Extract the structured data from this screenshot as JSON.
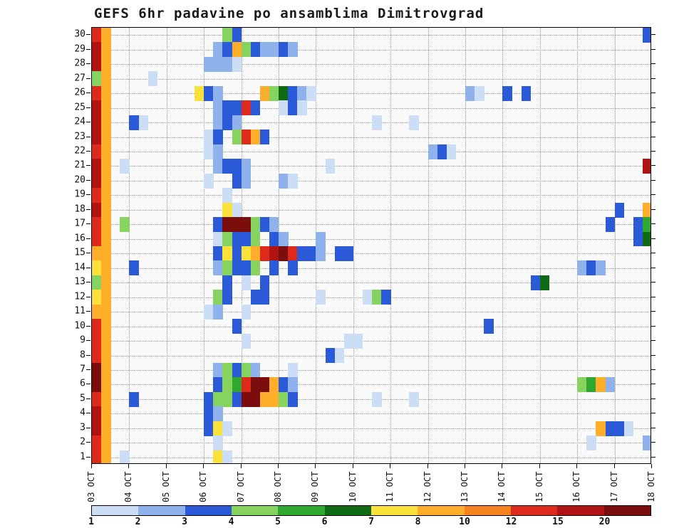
{
  "title": "GEFS 6hr padavine po ansamblima Dimitrovgrad",
  "figure": {
    "background": "#ffffff",
    "plot_background": "#fafafa",
    "grid_color": "#9a9a9a",
    "axis_color": "#000000"
  },
  "chart_data": {
    "type": "heatmap",
    "title": "GEFS 6hr padavine po ansamblima Dimitrovgrad",
    "n_rows": 30,
    "n_cols": 60,
    "grid": "dotted",
    "x_axis": {
      "tick_labels": [
        "03 OCT",
        "04 OCT",
        "05 OCT",
        "06 OCT",
        "07 OCT",
        "08 OCT",
        "09 OCT",
        "10 OCT",
        "11 OCT",
        "12 OCT",
        "13 OCT",
        "14 OCT",
        "15 OCT",
        "16 OCT",
        "17 OCT",
        "18 OCT"
      ],
      "steps_per_tick": 4
    },
    "y_axis": {
      "tick_labels": [
        "30",
        "29",
        "28",
        "27",
        "26",
        "25",
        "24",
        "23",
        "22",
        "21",
        "20",
        "19",
        "18",
        "17",
        "16",
        "15",
        "14",
        "13",
        "12",
        "11",
        "10",
        "9",
        "8",
        "7",
        "6",
        "5",
        "4",
        "3",
        "2",
        "1"
      ]
    },
    "legend": {
      "tick_labels": [
        "1",
        "2",
        "3",
        "4",
        "5",
        "6",
        "7",
        "8",
        "10",
        "12",
        "15",
        "20"
      ],
      "thresholds": [
        1,
        2,
        3,
        4,
        5,
        6,
        7,
        8,
        10,
        12,
        15,
        20
      ],
      "colors": [
        "#ccddf6",
        "#8fb2ec",
        "#2a5ad8",
        "#86d45f",
        "#2fa82f",
        "#0e6b14",
        "#fbe23a",
        "#ffae2c",
        "#f8821f",
        "#de2a1a",
        "#b01311",
        "#7c0d0d"
      ],
      "position": "bottom"
    },
    "cells": [
      [
        30,
        0,
        13
      ],
      [
        30,
        1,
        9
      ],
      [
        30,
        14,
        4.5
      ],
      [
        30,
        15,
        3.5
      ],
      [
        30,
        59,
        3.5
      ],
      [
        29,
        0,
        17
      ],
      [
        29,
        1,
        9
      ],
      [
        29,
        13,
        2.5
      ],
      [
        29,
        14,
        3.5
      ],
      [
        29,
        15,
        9
      ],
      [
        29,
        16,
        4.5
      ],
      [
        29,
        17,
        3.5
      ],
      [
        29,
        18,
        2.5
      ],
      [
        29,
        19,
        2.5
      ],
      [
        29,
        20,
        3.5
      ],
      [
        29,
        21,
        2.5
      ],
      [
        28,
        0,
        17
      ],
      [
        28,
        1,
        9
      ],
      [
        28,
        12,
        2.5
      ],
      [
        28,
        13,
        2.5
      ],
      [
        28,
        14,
        2.5
      ],
      [
        28,
        15,
        1.5
      ],
      [
        27,
        0,
        4.5
      ],
      [
        27,
        1,
        9
      ],
      [
        27,
        6,
        1.5
      ],
      [
        26,
        0,
        13
      ],
      [
        26,
        1,
        9
      ],
      [
        26,
        11,
        7.5
      ],
      [
        26,
        12,
        3.5
      ],
      [
        26,
        13,
        2.5
      ],
      [
        26,
        18,
        9
      ],
      [
        26,
        19,
        4.5
      ],
      [
        26,
        20,
        6.5
      ],
      [
        26,
        21,
        3.5
      ],
      [
        26,
        22,
        2.5
      ],
      [
        26,
        23,
        1.5
      ],
      [
        26,
        40,
        2.5
      ],
      [
        26,
        41,
        1.5
      ],
      [
        26,
        44,
        3.5
      ],
      [
        26,
        46,
        3.5
      ],
      [
        25,
        0,
        17
      ],
      [
        25,
        1,
        9
      ],
      [
        25,
        13,
        2.5
      ],
      [
        25,
        14,
        3.5
      ],
      [
        25,
        15,
        3.5
      ],
      [
        25,
        16,
        13
      ],
      [
        25,
        17,
        3.5
      ],
      [
        25,
        20,
        1.5
      ],
      [
        25,
        21,
        3.5
      ],
      [
        25,
        22,
        1.5
      ],
      [
        24,
        0,
        17
      ],
      [
        24,
        1,
        9
      ],
      [
        24,
        4,
        3.5
      ],
      [
        24,
        5,
        1.5
      ],
      [
        24,
        13,
        2.5
      ],
      [
        24,
        14,
        3.5
      ],
      [
        24,
        15,
        2.5
      ],
      [
        24,
        30,
        1.5
      ],
      [
        24,
        34,
        1.5
      ],
      [
        23,
        0,
        17
      ],
      [
        23,
        1,
        9
      ],
      [
        23,
        12,
        1.5
      ],
      [
        23,
        13,
        3.5
      ],
      [
        23,
        15,
        4.5
      ],
      [
        23,
        16,
        13
      ],
      [
        23,
        17,
        9
      ],
      [
        23,
        18,
        3.5
      ],
      [
        22,
        0,
        13
      ],
      [
        22,
        1,
        9
      ],
      [
        22,
        12,
        1.5
      ],
      [
        22,
        13,
        2.5
      ],
      [
        22,
        36,
        2.5
      ],
      [
        22,
        37,
        3.5
      ],
      [
        22,
        38,
        1.5
      ],
      [
        21,
        0,
        17
      ],
      [
        21,
        1,
        9
      ],
      [
        21,
        3,
        1.5
      ],
      [
        21,
        13,
        2.5
      ],
      [
        21,
        14,
        3.5
      ],
      [
        21,
        15,
        3.5
      ],
      [
        21,
        16,
        2.5
      ],
      [
        21,
        25,
        1.5
      ],
      [
        21,
        59,
        17
      ],
      [
        20,
        0,
        17
      ],
      [
        20,
        1,
        9
      ],
      [
        20,
        12,
        1.5
      ],
      [
        20,
        15,
        3.5
      ],
      [
        20,
        16,
        2.5
      ],
      [
        20,
        20,
        2.5
      ],
      [
        20,
        21,
        1.5
      ],
      [
        19,
        0,
        13
      ],
      [
        19,
        1,
        9
      ],
      [
        19,
        14,
        1.5
      ],
      [
        18,
        0,
        17
      ],
      [
        18,
        1,
        9
      ],
      [
        18,
        14,
        7.5
      ],
      [
        18,
        15,
        1.5
      ],
      [
        18,
        56,
        3.5
      ],
      [
        18,
        59,
        9
      ],
      [
        17,
        0,
        13
      ],
      [
        17,
        1,
        9
      ],
      [
        17,
        3,
        4.5
      ],
      [
        17,
        13,
        3.5
      ],
      [
        17,
        14,
        25
      ],
      [
        17,
        15,
        25
      ],
      [
        17,
        16,
        25
      ],
      [
        17,
        17,
        4.5
      ],
      [
        17,
        18,
        3.5
      ],
      [
        17,
        19,
        2.5
      ],
      [
        17,
        55,
        3.5
      ],
      [
        17,
        58,
        3.5
      ],
      [
        17,
        59,
        5.5
      ],
      [
        16,
        0,
        13
      ],
      [
        16,
        1,
        9
      ],
      [
        16,
        13,
        1.5
      ],
      [
        16,
        14,
        4.5
      ],
      [
        16,
        15,
        3.5
      ],
      [
        16,
        16,
        3.5
      ],
      [
        16,
        17,
        4.5
      ],
      [
        16,
        19,
        3.5
      ],
      [
        16,
        20,
        2.5
      ],
      [
        16,
        24,
        2.5
      ],
      [
        16,
        58,
        3.5
      ],
      [
        16,
        59,
        6.5
      ],
      [
        15,
        0,
        9
      ],
      [
        15,
        1,
        9
      ],
      [
        15,
        13,
        3.5
      ],
      [
        15,
        14,
        7.5
      ],
      [
        15,
        15,
        3.5
      ],
      [
        15,
        16,
        7.5
      ],
      [
        15,
        17,
        9
      ],
      [
        15,
        18,
        13
      ],
      [
        15,
        19,
        17
      ],
      [
        15,
        20,
        25
      ],
      [
        15,
        21,
        13
      ],
      [
        15,
        22,
        3.5
      ],
      [
        15,
        23,
        3.5
      ],
      [
        15,
        24,
        2.5
      ],
      [
        15,
        26,
        3.5
      ],
      [
        15,
        27,
        3.5
      ],
      [
        14,
        0,
        7.5
      ],
      [
        14,
        1,
        9
      ],
      [
        14,
        4,
        3.5
      ],
      [
        14,
        13,
        2.5
      ],
      [
        14,
        14,
        4.5
      ],
      [
        14,
        15,
        3.5
      ],
      [
        14,
        16,
        3.5
      ],
      [
        14,
        17,
        4.5
      ],
      [
        14,
        19,
        3.5
      ],
      [
        14,
        21,
        3.5
      ],
      [
        14,
        52,
        2.5
      ],
      [
        14,
        53,
        3.5
      ],
      [
        14,
        54,
        2.5
      ],
      [
        13,
        0,
        4.5
      ],
      [
        13,
        1,
        9
      ],
      [
        13,
        14,
        3.5
      ],
      [
        13,
        16,
        1.5
      ],
      [
        13,
        18,
        3.5
      ],
      [
        13,
        47,
        3.5
      ],
      [
        13,
        48,
        6.5
      ],
      [
        12,
        0,
        7.5
      ],
      [
        12,
        1,
        9
      ],
      [
        12,
        13,
        4.5
      ],
      [
        12,
        14,
        3.5
      ],
      [
        12,
        17,
        3.5
      ],
      [
        12,
        18,
        3.5
      ],
      [
        12,
        24,
        1.5
      ],
      [
        12,
        29,
        1.5
      ],
      [
        12,
        30,
        4.5
      ],
      [
        12,
        31,
        3.5
      ],
      [
        11,
        0,
        9
      ],
      [
        11,
        1,
        9
      ],
      [
        11,
        12,
        1.5
      ],
      [
        11,
        13,
        2.5
      ],
      [
        11,
        16,
        1.5
      ],
      [
        10,
        0,
        13
      ],
      [
        10,
        1,
        9
      ],
      [
        10,
        15,
        3.5
      ],
      [
        10,
        42,
        3.5
      ],
      [
        9,
        0,
        13
      ],
      [
        9,
        1,
        9
      ],
      [
        9,
        16,
        1.5
      ],
      [
        9,
        27,
        1.5
      ],
      [
        9,
        28,
        1.5
      ],
      [
        8,
        0,
        13
      ],
      [
        8,
        1,
        9
      ],
      [
        8,
        25,
        3.5
      ],
      [
        8,
        26,
        1.5
      ],
      [
        7,
        0,
        25
      ],
      [
        7,
        1,
        9
      ],
      [
        7,
        13,
        2.5
      ],
      [
        7,
        14,
        4.5
      ],
      [
        7,
        15,
        3.5
      ],
      [
        7,
        16,
        4.5
      ],
      [
        7,
        17,
        2.5
      ],
      [
        7,
        21,
        1.5
      ],
      [
        6,
        0,
        25
      ],
      [
        6,
        1,
        9
      ],
      [
        6,
        13,
        3.5
      ],
      [
        6,
        14,
        4.5
      ],
      [
        6,
        15,
        5.5
      ],
      [
        6,
        16,
        13
      ],
      [
        6,
        17,
        25
      ],
      [
        6,
        18,
        25
      ],
      [
        6,
        19,
        9
      ],
      [
        6,
        20,
        3.5
      ],
      [
        6,
        21,
        2.5
      ],
      [
        6,
        52,
        4.5
      ],
      [
        6,
        53,
        5.5
      ],
      [
        6,
        54,
        9
      ],
      [
        6,
        55,
        2.5
      ],
      [
        5,
        0,
        13
      ],
      [
        5,
        1,
        9
      ],
      [
        5,
        4,
        3.5
      ],
      [
        5,
        12,
        3.5
      ],
      [
        5,
        13,
        4.5
      ],
      [
        5,
        14,
        4.5
      ],
      [
        5,
        15,
        3.5
      ],
      [
        5,
        16,
        25
      ],
      [
        5,
        17,
        25
      ],
      [
        5,
        18,
        9
      ],
      [
        5,
        19,
        9
      ],
      [
        5,
        20,
        4.5
      ],
      [
        5,
        21,
        3.5
      ],
      [
        5,
        30,
        1.5
      ],
      [
        5,
        34,
        1.5
      ],
      [
        4,
        0,
        17
      ],
      [
        4,
        1,
        9
      ],
      [
        4,
        12,
        3.5
      ],
      [
        4,
        13,
        2.5
      ],
      [
        3,
        0,
        17
      ],
      [
        3,
        1,
        9
      ],
      [
        3,
        12,
        3.5
      ],
      [
        3,
        13,
        7.5
      ],
      [
        3,
        14,
        1.5
      ],
      [
        3,
        54,
        9
      ],
      [
        3,
        55,
        3.5
      ],
      [
        3,
        56,
        3.5
      ],
      [
        3,
        57,
        1.5
      ],
      [
        2,
        0,
        13
      ],
      [
        2,
        1,
        9
      ],
      [
        2,
        13,
        1.5
      ],
      [
        2,
        53,
        1.5
      ],
      [
        2,
        59,
        2.5
      ],
      [
        1,
        0,
        13
      ],
      [
        1,
        1,
        9
      ],
      [
        1,
        3,
        1.5
      ],
      [
        1,
        13,
        7.5
      ],
      [
        1,
        14,
        1.5
      ]
    ]
  }
}
